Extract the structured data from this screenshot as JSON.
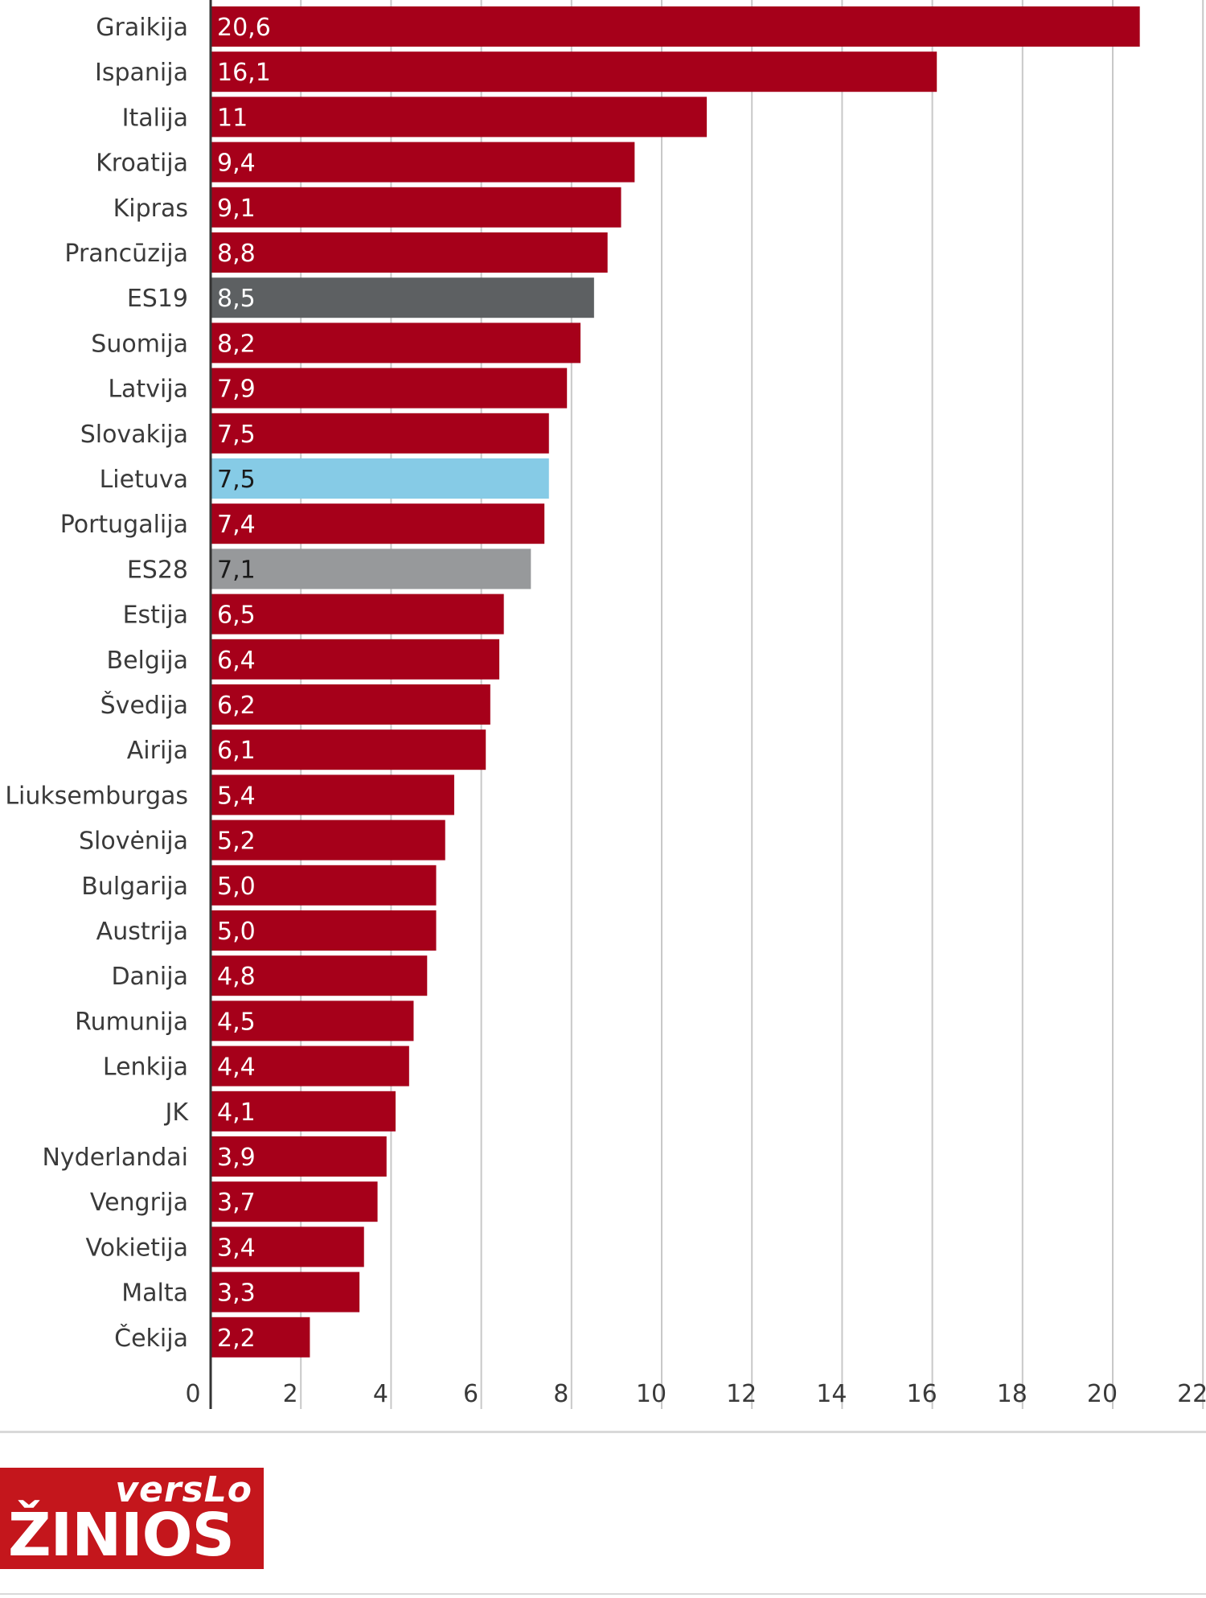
{
  "chart_data": {
    "type": "bar",
    "orientation": "horizontal",
    "categories": [
      "Graikija",
      "Ispanija",
      "Italija",
      "Kroatija",
      "Kipras",
      "Prancūzija",
      "ES19",
      "Suomija",
      "Latvija",
      "Slovakija",
      "Lietuva",
      "Portugalija",
      "ES28",
      "Estija",
      "Belgija",
      "Švedija",
      "Airija",
      "Liuksemburgas",
      "Slovėnija",
      "Bulgarija",
      "Austrija",
      "Danija",
      "Rumunija",
      "Lenkija",
      "JK",
      "Nyderlandai",
      "Vengrija",
      "Vokietija",
      "Malta",
      "Čekija"
    ],
    "values": [
      20.6,
      16.1,
      11,
      9.4,
      9.1,
      8.8,
      8.5,
      8.2,
      7.9,
      7.5,
      7.5,
      7.4,
      7.1,
      6.5,
      6.4,
      6.2,
      6.1,
      5.4,
      5.2,
      5.0,
      5.0,
      4.8,
      4.5,
      4.4,
      4.1,
      3.9,
      3.7,
      3.4,
      3.3,
      2.2
    ],
    "value_labels": [
      "20,6",
      "16,1",
      "11",
      "9,4",
      "9,1",
      "8,8",
      "8,5",
      "8,2",
      "7,9",
      "7,5",
      "7,5",
      "7,4",
      "7,1",
      "6,5",
      "6,4",
      "6,2",
      "6,1",
      "5,4",
      "5,2",
      "5,0",
      "5,0",
      "4,8",
      "4,5",
      "4,4",
      "4,1",
      "3,9",
      "3,7",
      "3,4",
      "3,3",
      "2,2"
    ],
    "xlim": [
      0,
      22
    ],
    "xticks": [
      0,
      2,
      4,
      6,
      8,
      10,
      12,
      14,
      16,
      18,
      20,
      22
    ],
    "grid": true,
    "title": "",
    "xlabel": "",
    "ylabel": "",
    "colors": {
      "default": "#a6001a",
      "highlight": {
        "ES19": "#5d6062",
        "Lietuva": "#86cbe6",
        "ES28": "#97999b"
      },
      "label_light": "#ffffff",
      "label_dark": "#1a1a1a",
      "grid": "#c8c8c8",
      "axis": "#333333"
    }
  },
  "logo": {
    "line1": "versLo",
    "line2": "ŽINIOS",
    "background": "#c4161c"
  }
}
